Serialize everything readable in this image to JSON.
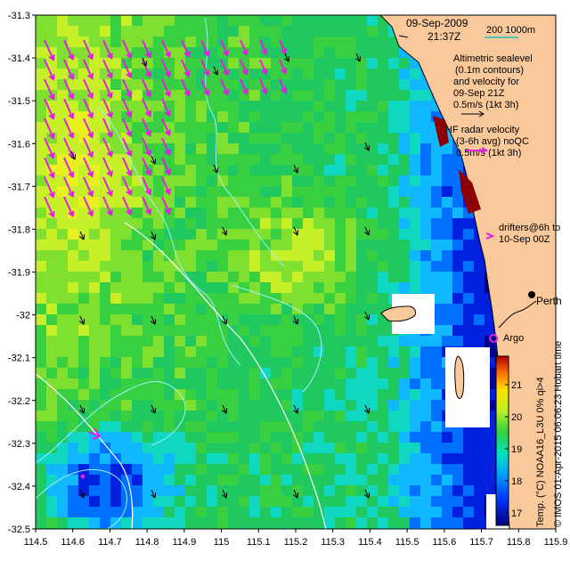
{
  "map": {
    "title_date": "09-Sep-2009",
    "title_time": "21:37Z",
    "scale_label": "200  1000m",
    "lat_ticks": [
      "-31.3",
      "-31.4",
      "-31.5",
      "-31.6",
      "-31.7",
      "-31.8",
      "-31.9",
      "-32",
      "-32.1",
      "-32.2",
      "-32.3",
      "-32.4",
      "-32.5"
    ],
    "lon_ticks": [
      "114.5",
      "114.6",
      "114.7",
      "114.8",
      "114.9",
      "115",
      "115.1",
      "115.2",
      "115.3",
      "115.4",
      "115.5",
      "115.6",
      "115.7",
      "115.8",
      "115.9"
    ],
    "altimetry": [
      "Altimetric sealevel",
      "(0.1m contours)",
      "and velocity for",
      "09-Sep 21Z",
      "0.5m/s (1kt 3h)"
    ],
    "hf_radar": [
      "HF radar velocity",
      "(3-6h avg) noQC",
      "0.5m/s (1kt 3h)"
    ],
    "drifters": [
      "drifters@6h to",
      "10-Sep 00Z"
    ],
    "city_perth": "Perth",
    "argo_label": "Argo",
    "colorbar_ticks": [
      "21",
      "20",
      "19",
      "18",
      "17"
    ],
    "colorbar_label": "Temp. (°C) NOAA16_L3U 0% qi>4",
    "credit": "© IMOS 01-Apr-2015 06:06:23 Hobart time",
    "colors": {
      "land": "#f9c89b",
      "land_edge": "#000000",
      "reef": "#8b0000",
      "hf_arrow": "#e020e0",
      "contour": "#9ff0ff",
      "cloud": "#ffffff"
    }
  }
}
